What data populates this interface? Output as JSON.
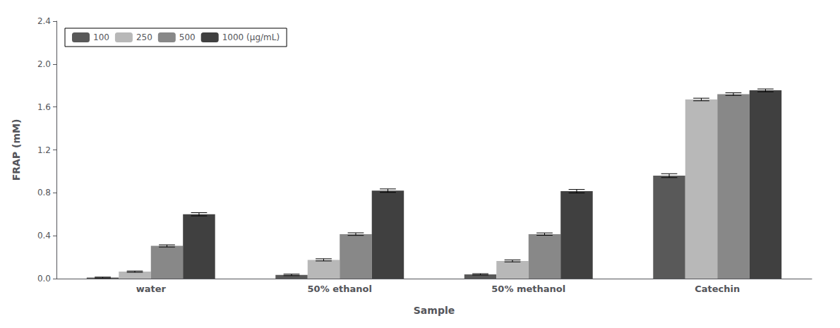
{
  "chart_data": {
    "type": "bar",
    "xlabel": "Sample",
    "ylabel": "FRAP (mM)",
    "categories": [
      "water",
      "50% ethanol",
      "50% methanol",
      "Catechin"
    ],
    "series": [
      {
        "name": "100",
        "color": "#595959",
        "values": [
          0.01,
          0.035,
          0.04,
          0.96
        ],
        "errors": [
          0.004,
          0.007,
          0.006,
          0.018
        ]
      },
      {
        "name": "250",
        "color": "#b8b8b8",
        "values": [
          0.065,
          0.175,
          0.165,
          1.67
        ],
        "errors": [
          0.006,
          0.01,
          0.009,
          0.012
        ]
      },
      {
        "name": "500",
        "color": "#888888",
        "values": [
          0.305,
          0.415,
          0.415,
          1.72
        ],
        "errors": [
          0.01,
          0.012,
          0.011,
          0.012
        ]
      },
      {
        "name": "1000 (μg/mL)",
        "color": "#404040",
        "values": [
          0.6,
          0.82,
          0.815,
          1.755
        ],
        "errors": [
          0.015,
          0.016,
          0.016,
          0.013
        ]
      }
    ],
    "ylim": [
      0,
      2.4
    ],
    "yticks": [
      {
        "value": 0,
        "label": "0.0"
      },
      0.4,
      0.8,
      1.2,
      1.6,
      {
        "value": 2.0,
        "label": "2.0"
      },
      2.4
    ],
    "legend": "upper left",
    "grid": false
  }
}
